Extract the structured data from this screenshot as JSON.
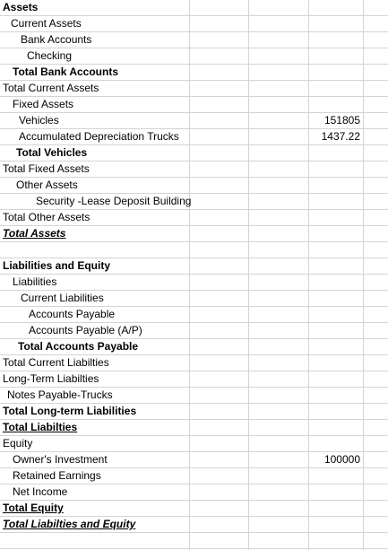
{
  "sheet": {
    "rows": [
      {
        "a": "Assets",
        "c": "",
        "indent": 3,
        "bold": true,
        "underline": false,
        "italic": false
      },
      {
        "a": "Current Assets",
        "c": "",
        "indent": 12,
        "bold": false,
        "underline": false,
        "italic": false
      },
      {
        "a": "Bank Accounts",
        "c": "",
        "indent": 23,
        "bold": false,
        "underline": false,
        "italic": false
      },
      {
        "a": "Checking",
        "c": "",
        "indent": 30,
        "bold": false,
        "underline": false,
        "italic": false
      },
      {
        "a": "Total Bank Accounts",
        "c": "",
        "indent": 14,
        "bold": true,
        "underline": false,
        "italic": false
      },
      {
        "a": "Total Current Assets",
        "c": "",
        "indent": 3,
        "bold": false,
        "underline": false,
        "italic": false
      },
      {
        "a": "Fixed Assets",
        "c": "",
        "indent": 14,
        "bold": false,
        "underline": false,
        "italic": false
      },
      {
        "a": "Vehicles",
        "c": "151805",
        "indent": 21,
        "bold": false,
        "underline": false,
        "italic": false
      },
      {
        "a": "Accumulated Depreciation Trucks",
        "c": "1437.22",
        "indent": 21,
        "bold": false,
        "underline": false,
        "italic": false
      },
      {
        "a": "Total Vehicles",
        "c": "",
        "indent": 18,
        "bold": true,
        "underline": false,
        "italic": false
      },
      {
        "a": "Total Fixed Assets",
        "c": "",
        "indent": 3,
        "bold": false,
        "underline": false,
        "italic": false
      },
      {
        "a": "Other Assets",
        "c": "",
        "indent": 18,
        "bold": false,
        "underline": false,
        "italic": false
      },
      {
        "a": "Security -Lease Deposit Building",
        "c": "",
        "indent": 40,
        "bold": false,
        "underline": false,
        "italic": false
      },
      {
        "a": "Total Other Assets",
        "c": "",
        "indent": 3,
        "bold": false,
        "underline": false,
        "italic": false
      },
      {
        "a": "Total Assets",
        "c": "",
        "indent": 3,
        "bold": true,
        "underline": true,
        "italic": true
      },
      {
        "a": "",
        "c": "",
        "indent": 3,
        "bold": false,
        "underline": false,
        "italic": false
      },
      {
        "a": "Liabilities and Equity",
        "c": "",
        "indent": 3,
        "bold": true,
        "underline": false,
        "italic": false
      },
      {
        "a": "Liabilities",
        "c": "",
        "indent": 14,
        "bold": false,
        "underline": false,
        "italic": false
      },
      {
        "a": "Current Liabilities",
        "c": "",
        "indent": 23,
        "bold": false,
        "underline": false,
        "italic": false
      },
      {
        "a": "Accounts Payable",
        "c": "",
        "indent": 32,
        "bold": false,
        "underline": false,
        "italic": false
      },
      {
        "a": "Accounts Payable (A/P)",
        "c": "",
        "indent": 32,
        "bold": false,
        "underline": false,
        "italic": false
      },
      {
        "a": "Total Accounts Payable",
        "c": "",
        "indent": 20,
        "bold": true,
        "underline": false,
        "italic": false
      },
      {
        "a": "Total Current Liabilties",
        "c": "",
        "indent": 3,
        "bold": false,
        "underline": false,
        "italic": false
      },
      {
        "a": "Long-Term Liabilties",
        "c": "",
        "indent": 3,
        "bold": false,
        "underline": false,
        "italic": false
      },
      {
        "a": "Notes Payable-Trucks",
        "c": "",
        "indent": 8,
        "bold": false,
        "underline": false,
        "italic": false
      },
      {
        "a": "Total Long-term Liabilities",
        "c": "",
        "indent": 3,
        "bold": true,
        "underline": false,
        "italic": false
      },
      {
        "a": "Total Liabilties",
        "c": "",
        "indent": 3,
        "bold": true,
        "underline": true,
        "italic": false
      },
      {
        "a": "Equity",
        "c": "",
        "indent": 3,
        "bold": false,
        "underline": false,
        "italic": false
      },
      {
        "a": "Owner's Investment",
        "c": "100000",
        "indent": 14,
        "bold": false,
        "underline": false,
        "italic": false
      },
      {
        "a": "Retained Earnings",
        "c": "",
        "indent": 14,
        "bold": false,
        "underline": false,
        "italic": false
      },
      {
        "a": "Net Income",
        "c": "",
        "indent": 14,
        "bold": false,
        "underline": false,
        "italic": false
      },
      {
        "a": "Total Equity",
        "c": "",
        "indent": 3,
        "bold": true,
        "underline": true,
        "italic": false
      },
      {
        "a": "Total Liabilties and Equity",
        "c": "",
        "indent": 3,
        "bold": true,
        "underline": true,
        "italic": true
      },
      {
        "a": "",
        "c": "",
        "indent": 3,
        "bold": false,
        "underline": false,
        "italic": false
      }
    ]
  }
}
